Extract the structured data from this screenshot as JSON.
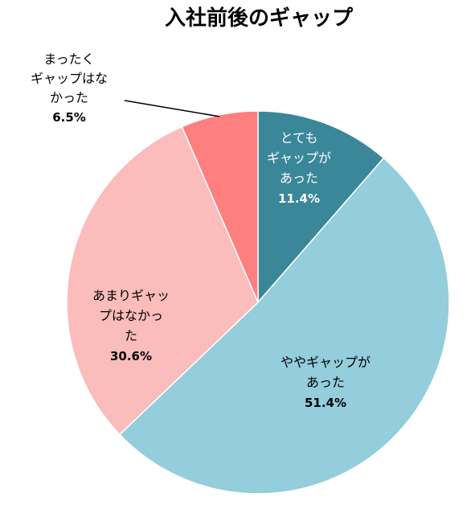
{
  "chart_data": {
    "type": "pie",
    "title": "入社前後のギャップ",
    "start_angle_deg": 0,
    "direction": "clockwise",
    "slices": [
      {
        "name": "とてもギャップがあった",
        "label_lines": [
          "とても",
          "ギャップが",
          "あった"
        ],
        "value": 11.4,
        "value_label": "11.4%",
        "color": "#3a8799",
        "text_color": "#ffffff"
      },
      {
        "name": "ややギャップがあった",
        "label_lines": [
          "ややギャップが",
          "あった"
        ],
        "value": 51.4,
        "value_label": "51.4%",
        "color": "#94cddb",
        "text_color": "#000000"
      },
      {
        "name": "あまりギャップはなかった",
        "label_lines": [
          "あまりギャッ",
          "プはなかっ",
          "た"
        ],
        "value": 30.6,
        "value_label": "30.6%",
        "color": "#fbbcbc",
        "text_color": "#000000"
      },
      {
        "name": "まったくギャップはなかった",
        "label_lines": [
          "まったく",
          "ギャップはな",
          "かった"
        ],
        "value": 6.5,
        "value_label": "6.5%",
        "color": "#fd7f7f",
        "text_color": "#000000",
        "label_outside": true
      }
    ]
  }
}
